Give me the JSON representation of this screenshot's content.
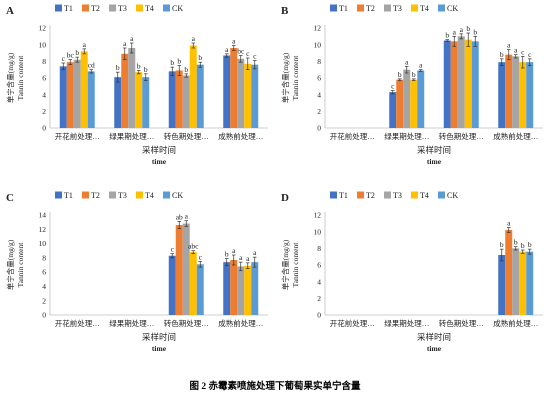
{
  "figure": {
    "caption": "图 2 赤霉素喷施处理下葡萄果实单宁含量"
  },
  "chart_data": [
    {
      "panel": "A",
      "type": "bar",
      "categories": [
        "开花前处理…",
        "绿果期处理…",
        "转色期处理…",
        "成熟前处理…"
      ],
      "ylim": [
        0,
        12
      ],
      "yticks": [
        0,
        2,
        4,
        6,
        8,
        10,
        12
      ],
      "ylabel": "单宁含量(mg/g)",
      "ylabel_en": "Tannin content",
      "xlabel": "采样时间",
      "xlabel_en": "time",
      "legend": "top",
      "series": [
        {
          "name": "T1",
          "color": "#4472C4",
          "values": [
            7.4,
            6.1,
            6.8,
            8.7
          ],
          "errors": [
            0.4,
            0.6,
            0.5,
            0.2
          ],
          "letters": [
            "c",
            "b",
            "b",
            "a"
          ]
        },
        {
          "name": "T2",
          "color": "#ED7D31",
          "values": [
            7.9,
            8.9,
            6.9,
            9.6
          ],
          "errors": [
            0.3,
            0.7,
            0.6,
            0.3
          ],
          "letters": [
            "bc",
            "a",
            "b",
            "a"
          ]
        },
        {
          "name": "T3",
          "color": "#A5A5A5",
          "values": [
            8.2,
            9.6,
            6.3,
            8.3
          ],
          "errors": [
            0.3,
            0.6,
            0.2,
            0.4
          ],
          "letters": [
            "b",
            "a",
            "b",
            "bc"
          ]
        },
        {
          "name": "T4",
          "color": "#FFC000",
          "values": [
            9.2,
            6.7,
            9.9,
            7.7
          ],
          "errors": [
            0.3,
            0.2,
            0.3,
            0.7
          ],
          "letters": [
            "a",
            "b",
            "a",
            "c"
          ]
        },
        {
          "name": "CK",
          "color": "#5B9BD5",
          "values": [
            6.8,
            6.1,
            7.6,
            7.6
          ],
          "errors": [
            0.2,
            0.4,
            0.3,
            0.5
          ],
          "letters": [
            "cd",
            "b",
            "b",
            "c"
          ]
        }
      ]
    },
    {
      "panel": "B",
      "type": "bar",
      "categories": [
        "开花前处理…",
        "绿果期处理…",
        "转色期处理…",
        "成熟前处理…"
      ],
      "ylim": [
        0,
        12
      ],
      "yticks": [
        0,
        2,
        4,
        6,
        8,
        10,
        12
      ],
      "ylabel": "单宁含量(mg/g)",
      "ylabel_en": "Tannin content",
      "xlabel": "采样时间",
      "xlabel_en": "time",
      "legend": "top",
      "series": [
        {
          "name": "T1",
          "color": "#4472C4",
          "values": [
            null,
            4.3,
            10.5,
            7.9
          ],
          "errors": [
            null,
            0.2,
            0.1,
            0.4
          ],
          "letters": [
            null,
            "c",
            "b",
            "b"
          ]
        },
        {
          "name": "T2",
          "color": "#ED7D31",
          "values": [
            null,
            5.8,
            10.4,
            8.8
          ],
          "errors": [
            null,
            0.1,
            0.6,
            0.6
          ],
          "letters": [
            null,
            "b",
            "a",
            "a"
          ]
        },
        {
          "name": "T3",
          "color": "#A5A5A5",
          "values": [
            null,
            7.0,
            11.0,
            8.6
          ],
          "errors": [
            null,
            0.4,
            0.3,
            0.2
          ],
          "letters": [
            null,
            "a",
            "a",
            "a"
          ]
        },
        {
          "name": "T4",
          "color": "#FFC000",
          "values": [
            null,
            5.8,
            10.6,
            7.9
          ],
          "errors": [
            null,
            0.1,
            0.8,
            0.7
          ],
          "letters": [
            null,
            "b",
            "b",
            "c"
          ]
        },
        {
          "name": "CK",
          "color": "#5B9BD5",
          "values": [
            null,
            6.9,
            10.4,
            7.9
          ],
          "errors": [
            null,
            0.1,
            0.6,
            0.4
          ],
          "letters": [
            null,
            "a",
            "b",
            "c"
          ]
        }
      ]
    },
    {
      "panel": "C",
      "type": "bar",
      "categories": [
        "开花前处理…",
        "绿果期处理…",
        "转色期处理…",
        "成熟前处理…"
      ],
      "ylim": [
        0,
        14
      ],
      "yticks": [
        0,
        2,
        4,
        6,
        8,
        10,
        12,
        14
      ],
      "ylabel": "单宁含量(mg/g)",
      "ylabel_en": "Tannin content",
      "xlabel": "采样时间",
      "xlabel_en": "time",
      "legend": "top",
      "series": [
        {
          "name": "T1",
          "color": "#4472C4",
          "values": [
            null,
            null,
            8.3,
            7.4
          ],
          "errors": [
            null,
            null,
            0.3,
            0.5
          ],
          "letters": [
            null,
            null,
            "c",
            "b"
          ]
        },
        {
          "name": "T2",
          "color": "#ED7D31",
          "values": [
            null,
            null,
            12.6,
            7.7
          ],
          "errors": [
            null,
            null,
            0.5,
            0.7
          ],
          "letters": [
            null,
            null,
            "ab",
            "a"
          ]
        },
        {
          "name": "T3",
          "color": "#A5A5A5",
          "values": [
            null,
            null,
            12.8,
            6.8
          ],
          "errors": [
            null,
            null,
            0.4,
            0.6
          ],
          "letters": [
            null,
            null,
            "a",
            "a"
          ]
        },
        {
          "name": "T4",
          "color": "#FFC000",
          "values": [
            null,
            null,
            8.8,
            6.9
          ],
          "errors": [
            null,
            null,
            0.2,
            0.4
          ],
          "letters": [
            null,
            null,
            "abc",
            "a"
          ]
        },
        {
          "name": "CK",
          "color": "#5B9BD5",
          "values": [
            null,
            null,
            7.1,
            7.4
          ],
          "errors": [
            null,
            null,
            0.4,
            0.7
          ],
          "letters": [
            null,
            null,
            "c",
            "a"
          ]
        }
      ]
    },
    {
      "panel": "D",
      "type": "bar",
      "categories": [
        "开花前处理…",
        "绿果期处理…",
        "转色期处理…",
        "成熟前处理…"
      ],
      "ylim": [
        0,
        12
      ],
      "yticks": [
        0,
        2,
        4,
        6,
        8,
        10,
        12
      ],
      "ylabel": "单宁含量(mg/g)",
      "ylabel_en": "Tannin content",
      "xlabel": "采样时间",
      "xlabel_en": "time",
      "legend": "top",
      "series": [
        {
          "name": "T1",
          "color": "#4472C4",
          "values": [
            null,
            null,
            null,
            7.2
          ],
          "errors": [
            null,
            null,
            null,
            0.7
          ],
          "letters": [
            null,
            null,
            null,
            "b"
          ]
        },
        {
          "name": "T2",
          "color": "#ED7D31",
          "values": [
            null,
            null,
            null,
            10.2
          ],
          "errors": [
            null,
            null,
            null,
            0.3
          ],
          "letters": [
            null,
            null,
            null,
            "a"
          ]
        },
        {
          "name": "T3",
          "color": "#A5A5A5",
          "values": [
            null,
            null,
            null,
            8.0
          ],
          "errors": [
            null,
            null,
            null,
            0.2
          ],
          "letters": [
            null,
            null,
            null,
            "b"
          ]
        },
        {
          "name": "T4",
          "color": "#FFC000",
          "values": [
            null,
            null,
            null,
            7.6
          ],
          "errors": [
            null,
            null,
            null,
            0.2
          ],
          "letters": [
            null,
            null,
            null,
            "b"
          ]
        },
        {
          "name": "CK",
          "color": "#5B9BD5",
          "values": [
            null,
            null,
            null,
            7.6
          ],
          "errors": [
            null,
            null,
            null,
            0.3
          ],
          "letters": [
            null,
            null,
            null,
            "b"
          ]
        }
      ]
    }
  ]
}
